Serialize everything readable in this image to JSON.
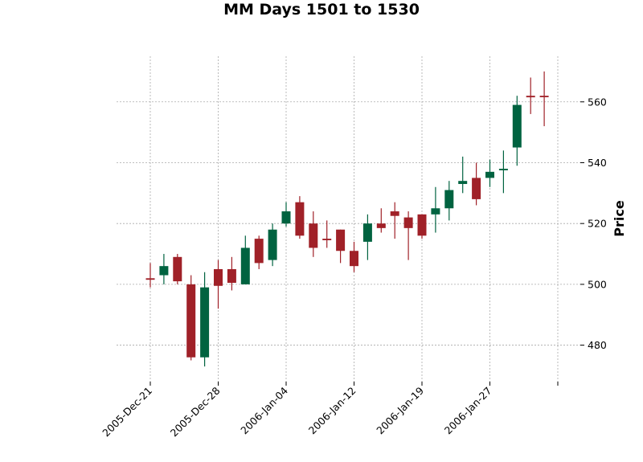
{
  "chart_data": {
    "type": "candlestick",
    "title": "MM Days 1501 to 1530",
    "ylabel": "Price",
    "ylim": [
      468,
      575
    ],
    "yticks": [
      480,
      500,
      520,
      540,
      560
    ],
    "xtick_indices": [
      0,
      5,
      10,
      15,
      20,
      25,
      30
    ],
    "xtick_labels": [
      "2005-Dec-21",
      "2005-Dec-28",
      "2006-Jan-04",
      "2006-Jan-12",
      "2006-Jan-19",
      "2006-Jan-27",
      ""
    ],
    "grid": true,
    "colors": {
      "up": "#006340",
      "down": "#a02128"
    },
    "candles": [
      {
        "open": 502.0,
        "high": 507.0,
        "low": 499.0,
        "close": 501.5
      },
      {
        "open": 503.0,
        "high": 510.0,
        "low": 500.0,
        "close": 506.0
      },
      {
        "open": 509.0,
        "high": 510.0,
        "low": 500.0,
        "close": 501.0
      },
      {
        "open": 500.0,
        "high": 503.0,
        "low": 475.0,
        "close": 476.0
      },
      {
        "open": 476.0,
        "high": 504.0,
        "low": 473.0,
        "close": 499.0
      },
      {
        "open": 505.0,
        "high": 508.0,
        "low": 492.0,
        "close": 499.5
      },
      {
        "open": 505.0,
        "high": 509.0,
        "low": 498.0,
        "close": 500.5
      },
      {
        "open": 500.0,
        "high": 516.0,
        "low": 500.0,
        "close": 512.0
      },
      {
        "open": 515.0,
        "high": 516.0,
        "low": 505.0,
        "close": 507.0
      },
      {
        "open": 508.0,
        "high": 520.0,
        "low": 506.0,
        "close": 518.0
      },
      {
        "open": 520.0,
        "high": 527.0,
        "low": 519.0,
        "close": 524.0
      },
      {
        "open": 527.0,
        "high": 529.0,
        "low": 515.0,
        "close": 516.0
      },
      {
        "open": 520.0,
        "high": 524.0,
        "low": 509.0,
        "close": 512.0
      },
      {
        "open": 515.0,
        "high": 521.0,
        "low": 512.0,
        "close": 514.5
      },
      {
        "open": 518.0,
        "high": 518.0,
        "low": 507.0,
        "close": 511.0
      },
      {
        "open": 511.0,
        "high": 514.0,
        "low": 504.0,
        "close": 506.0
      },
      {
        "open": 514.0,
        "high": 523.0,
        "low": 508.0,
        "close": 520.0
      },
      {
        "open": 520.0,
        "high": 525.0,
        "low": 517.0,
        "close": 518.5
      },
      {
        "open": 524.0,
        "high": 527.0,
        "low": 515.0,
        "close": 522.5
      },
      {
        "open": 522.0,
        "high": 524.0,
        "low": 508.0,
        "close": 518.5
      },
      {
        "open": 523.0,
        "high": 523.0,
        "low": 515.0,
        "close": 516.0
      },
      {
        "open": 523.0,
        "high": 532.0,
        "low": 517.0,
        "close": 525.0
      },
      {
        "open": 525.0,
        "high": 534.0,
        "low": 521.0,
        "close": 531.0
      },
      {
        "open": 533.0,
        "high": 542.0,
        "low": 530.0,
        "close": 534.0
      },
      {
        "open": 535.0,
        "high": 540.0,
        "low": 526.0,
        "close": 528.0
      },
      {
        "open": 535.0,
        "high": 541.0,
        "low": 532.0,
        "close": 537.0
      },
      {
        "open": 537.5,
        "high": 544.0,
        "low": 530.0,
        "close": 538.0
      },
      {
        "open": 545.0,
        "high": 562.0,
        "low": 539.0,
        "close": 559.0
      },
      {
        "open": 562.0,
        "high": 568.0,
        "low": 556.0,
        "close": 561.5
      },
      {
        "open": 562.0,
        "high": 570.0,
        "low": 552.0,
        "close": 561.8
      }
    ]
  }
}
